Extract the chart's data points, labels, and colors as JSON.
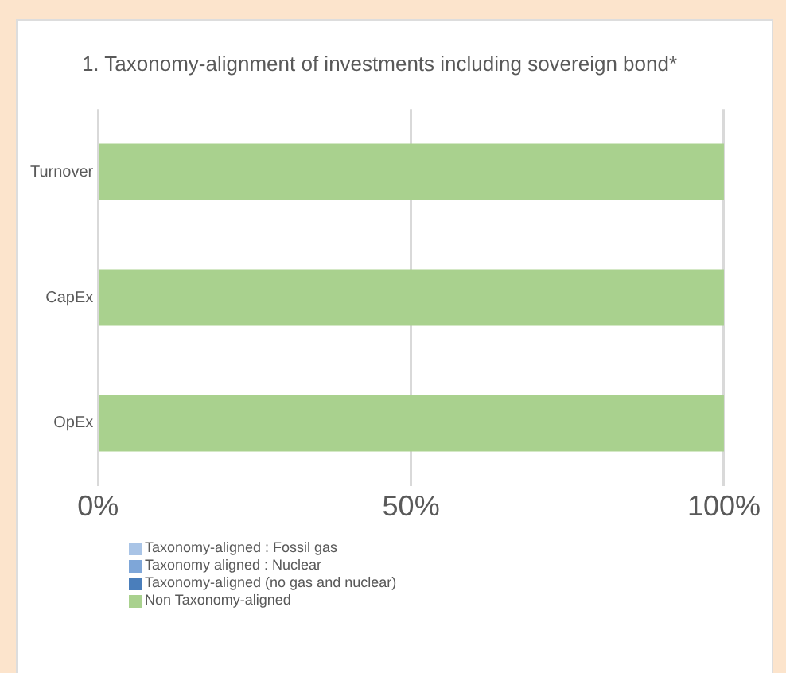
{
  "chart_data": {
    "type": "bar",
    "orientation": "horizontal",
    "stacked": true,
    "title": "1. Taxonomy-alignment of investments including sovereign bond*",
    "categories": [
      "Turnover",
      "CapEx",
      "OpEx"
    ],
    "series": [
      {
        "name": "Taxonomy-aligned : Fossil gas",
        "color": "#a9c4e6",
        "values": [
          0,
          0,
          0
        ]
      },
      {
        "name": "Taxonomy aligned : Nuclear",
        "color": "#7ea6d8",
        "values": [
          0,
          0,
          0
        ]
      },
      {
        "name": "Taxonomy-aligned (no gas and nuclear)",
        "color": "#4a7ebb",
        "values": [
          0,
          0,
          0
        ]
      },
      {
        "name": "Non Taxonomy-aligned",
        "color": "#a9d18e",
        "values": [
          100,
          100,
          100
        ]
      }
    ],
    "xlim": [
      0,
      100
    ],
    "xticks": [
      {
        "value": 0,
        "label": "0%"
      },
      {
        "value": 50,
        "label": "50%"
      },
      {
        "value": 100,
        "label": "100%"
      }
    ],
    "grid": "x",
    "legend": "bottom"
  }
}
